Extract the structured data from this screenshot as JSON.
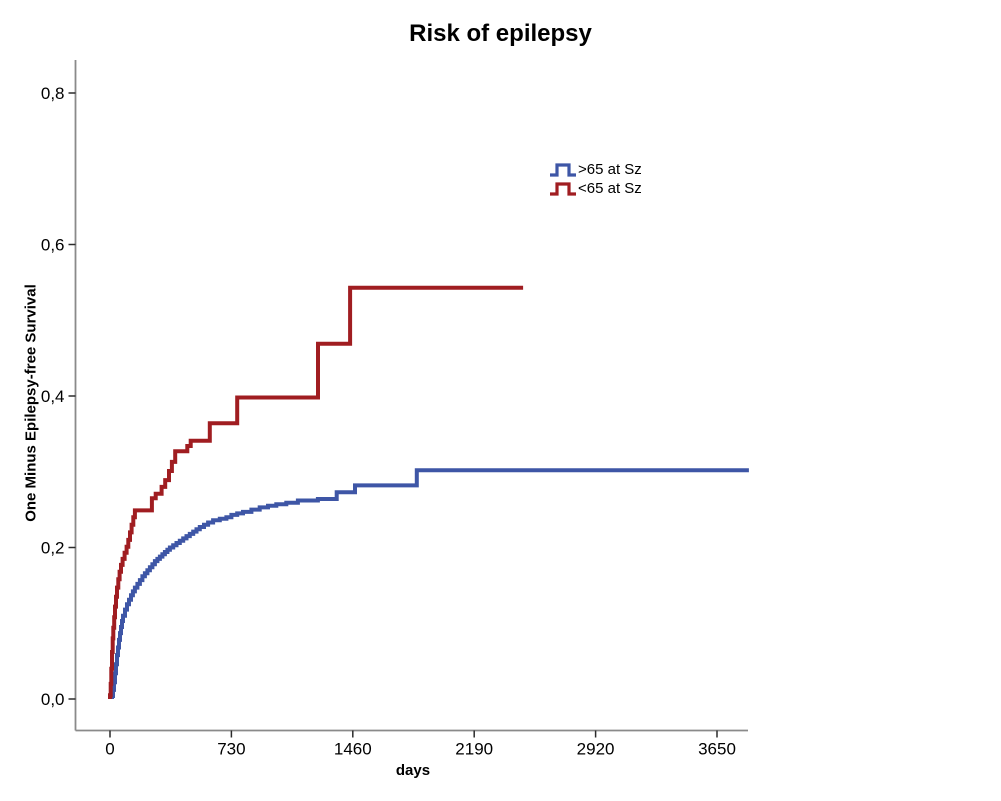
{
  "title": "Risk of epilepsy",
  "x_axis_title": "days",
  "y_axis_title": "One Minus Epilepsy-free Survival",
  "legend": {
    "items": [
      {
        "label": ">65 at Sz",
        "color": "#3E56A6"
      },
      {
        "label": "<65 at Sz",
        "color": "#A01D21"
      }
    ]
  },
  "colors": {
    "axis_line": "#8a8a8a",
    "tick_mark": "#2b2b2b",
    "text": "#000000",
    "background": "#ffffff",
    "series_blue": "#3E56A6",
    "series_red": "#A01D21"
  },
  "chart_data": {
    "type": "line",
    "subtype": "kaplan-meier-step",
    "title": "Risk of epilepsy",
    "xlabel": "days",
    "ylabel": "One Minus Epilepsy-free Survival",
    "xlim": [
      0,
      3900
    ],
    "ylim": [
      0,
      0.85
    ],
    "grid": false,
    "legend_position": "inside-upper-right",
    "x_ticks": [
      {
        "value": 0,
        "label": "0"
      },
      {
        "value": 730,
        "label": "730"
      },
      {
        "value": 1460,
        "label": "1460"
      },
      {
        "value": 2190,
        "label": "2190"
      },
      {
        "value": 2920,
        "label": "2920"
      },
      {
        "value": 3650,
        "label": "3650"
      }
    ],
    "y_ticks": [
      {
        "value": 0.0,
        "label": "0,0"
      },
      {
        "value": 0.2,
        "label": "0,2"
      },
      {
        "value": 0.4,
        "label": "0,4"
      },
      {
        "value": 0.6,
        "label": "0,6"
      },
      {
        "value": 0.8,
        "label": "0,8"
      }
    ],
    "series": [
      {
        "id": "gt65",
        "name": ">65 at Sz",
        "color": "#3E56A6",
        "final_value": 0.302,
        "end_day": 3842,
        "points": [
          [
            12,
            0.004
          ],
          [
            18,
            0.012
          ],
          [
            24,
            0.022
          ],
          [
            30,
            0.034
          ],
          [
            36,
            0.046
          ],
          [
            42,
            0.058
          ],
          [
            48,
            0.068
          ],
          [
            54,
            0.078
          ],
          [
            60,
            0.087
          ],
          [
            66,
            0.095
          ],
          [
            72,
            0.103
          ],
          [
            78,
            0.11
          ],
          [
            90,
            0.118
          ],
          [
            102,
            0.125
          ],
          [
            114,
            0.131
          ],
          [
            126,
            0.137
          ],
          [
            138,
            0.142
          ],
          [
            150,
            0.147
          ],
          [
            165,
            0.152
          ],
          [
            180,
            0.157
          ],
          [
            195,
            0.162
          ],
          [
            210,
            0.166
          ],
          [
            225,
            0.17
          ],
          [
            240,
            0.174
          ],
          [
            255,
            0.178
          ],
          [
            270,
            0.182
          ],
          [
            285,
            0.185
          ],
          [
            300,
            0.188
          ],
          [
            315,
            0.191
          ],
          [
            330,
            0.194
          ],
          [
            345,
            0.197
          ],
          [
            360,
            0.2
          ],
          [
            380,
            0.203
          ],
          [
            400,
            0.206
          ],
          [
            420,
            0.209
          ],
          [
            440,
            0.212
          ],
          [
            460,
            0.215
          ],
          [
            480,
            0.218
          ],
          [
            500,
            0.221
          ],
          [
            520,
            0.224
          ],
          [
            540,
            0.227
          ],
          [
            565,
            0.23
          ],
          [
            590,
            0.233
          ],
          [
            620,
            0.236
          ],
          [
            660,
            0.238
          ],
          [
            700,
            0.24
          ],
          [
            730,
            0.243
          ],
          [
            765,
            0.245
          ],
          [
            800,
            0.247
          ],
          [
            850,
            0.25
          ],
          [
            900,
            0.253
          ],
          [
            950,
            0.255
          ],
          [
            1000,
            0.257
          ],
          [
            1060,
            0.259
          ],
          [
            1130,
            0.262
          ],
          [
            1250,
            0.264
          ],
          [
            1363,
            0.273
          ],
          [
            1473,
            0.282
          ],
          [
            1845,
            0.302
          ],
          [
            3842,
            0.302
          ]
        ]
      },
      {
        "id": "lt65",
        "name": "<65 at Sz",
        "color": "#A01D21",
        "final_value": 0.543,
        "end_day": 2484,
        "points": [
          [
            0,
            0.005
          ],
          [
            4,
            0.02
          ],
          [
            8,
            0.04
          ],
          [
            12,
            0.062
          ],
          [
            16,
            0.08
          ],
          [
            20,
            0.094
          ],
          [
            25,
            0.108
          ],
          [
            30,
            0.122
          ],
          [
            36,
            0.135
          ],
          [
            42,
            0.147
          ],
          [
            50,
            0.158
          ],
          [
            58,
            0.168
          ],
          [
            66,
            0.177
          ],
          [
            76,
            0.185
          ],
          [
            88,
            0.193
          ],
          [
            100,
            0.201
          ],
          [
            110,
            0.21
          ],
          [
            120,
            0.22
          ],
          [
            130,
            0.23
          ],
          [
            140,
            0.24
          ],
          [
            150,
            0.249
          ],
          [
            252,
            0.265
          ],
          [
            275,
            0.271
          ],
          [
            310,
            0.28
          ],
          [
            332,
            0.289
          ],
          [
            355,
            0.301
          ],
          [
            372,
            0.313
          ],
          [
            392,
            0.327
          ],
          [
            465,
            0.334
          ],
          [
            485,
            0.341
          ],
          [
            600,
            0.364
          ],
          [
            765,
            0.398
          ],
          [
            1251,
            0.469
          ],
          [
            1444,
            0.543
          ],
          [
            2484,
            0.543
          ]
        ]
      }
    ]
  }
}
